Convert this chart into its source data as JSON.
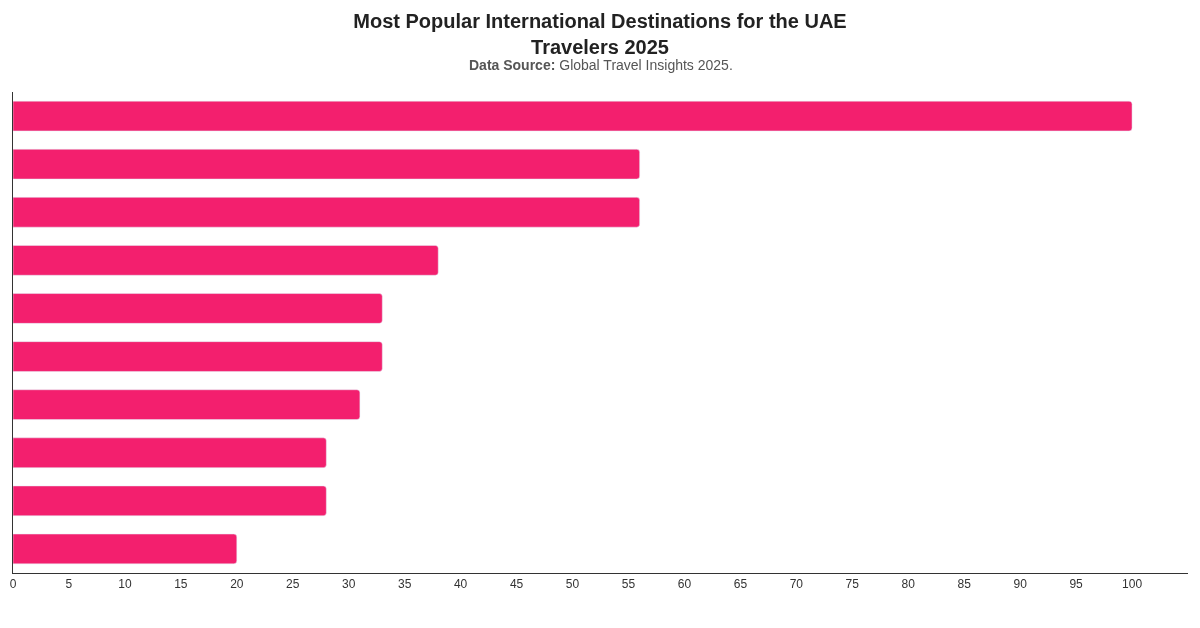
{
  "chart_data": {
    "type": "bar",
    "orientation": "horizontal",
    "title": "Most Popular International Destinations for the UAE Travelers 2025",
    "subtitle": "Data Source: Global Travel Insights 2025.",
    "categories": [
      null,
      null,
      null,
      null,
      null,
      null,
      null,
      null,
      null,
      null
    ],
    "values": [
      100,
      56,
      56,
      38,
      33,
      33,
      31,
      28,
      28,
      20
    ],
    "color": "#f31f6e",
    "xlim": [
      0,
      105
    ],
    "xticks": [
      0,
      5,
      10,
      15,
      20,
      25,
      30,
      35,
      40,
      45,
      50,
      55,
      60,
      65,
      70,
      75,
      80,
      85,
      90,
      95,
      100
    ],
    "legend": false,
    "tick_labels": "x"
  }
}
